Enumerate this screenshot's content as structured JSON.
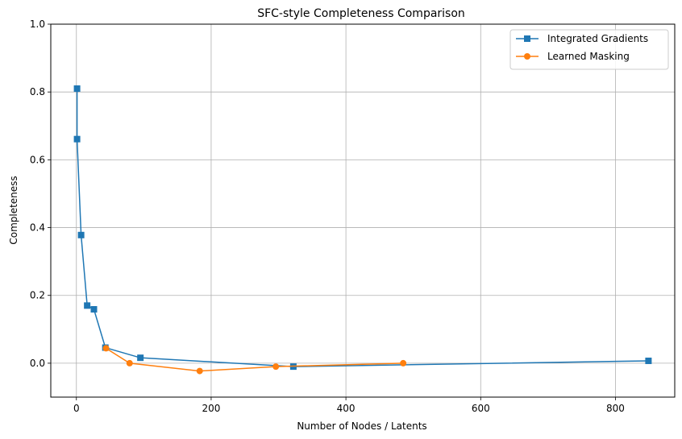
{
  "chart_data": {
    "type": "line",
    "title": "SFC-style Completeness Comparison",
    "xlabel": "Number of Nodes / Latents",
    "ylabel": "Completeness",
    "xlim": [
      -38,
      888
    ],
    "ylim": [
      -0.1,
      1.0
    ],
    "xticks": [
      0,
      200,
      400,
      600,
      800
    ],
    "yticks": [
      0.0,
      0.2,
      0.4,
      0.6,
      0.8,
      1.0
    ],
    "xtick_labels": [
      "0",
      "200",
      "400",
      "600",
      "800"
    ],
    "ytick_labels": [
      "0.0",
      "0.2",
      "0.4",
      "0.6",
      "0.8",
      "1.0"
    ],
    "grid": true,
    "legend_position": "top-right",
    "series": [
      {
        "name": "Integrated Gradients",
        "color": "#1f77b4",
        "marker": "square",
        "x": [
          1,
          1,
          7,
          16,
          26,
          43,
          95,
          322,
          849
        ],
        "y": [
          0.81,
          0.661,
          0.378,
          0.17,
          0.159,
          0.046,
          0.016,
          -0.01,
          0.007
        ]
      },
      {
        "name": "Learned Masking",
        "color": "#ff7f0e",
        "marker": "circle",
        "x": [
          44,
          79,
          183,
          296,
          485
        ],
        "y": [
          0.044,
          0.0,
          -0.023,
          -0.01,
          0.0
        ]
      }
    ]
  }
}
